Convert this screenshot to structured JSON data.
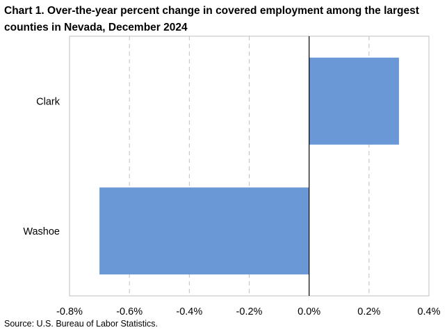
{
  "title": "Chart 1. Over-the-year percent change in covered employment among the largest counties in Nevada, December 2024",
  "source": "Source: U.S. Bureau of Labor Statistics.",
  "colors": {
    "bar": "#6A98D6",
    "grid": "#BFBFBF",
    "axis": "#000000",
    "frame": "#BFBFBF"
  },
  "chart_data": {
    "type": "bar",
    "orientation": "horizontal",
    "title": "Chart 1. Over-the-year percent change in covered employment among the largest counties in Nevada, December 2024",
    "categories": [
      "Clark",
      "Washoe"
    ],
    "values": [
      0.3,
      -0.7
    ],
    "unit": "percent",
    "xlim": [
      -0.8,
      0.4
    ],
    "xticks": [
      -0.8,
      -0.6,
      -0.4,
      -0.2,
      0.0,
      0.2,
      0.4
    ],
    "xtick_labels": [
      "-0.8%",
      "-0.6%",
      "-0.4%",
      "-0.2%",
      "0.0%",
      "0.2%",
      "0.4%"
    ],
    "xlabel": "",
    "ylabel": "",
    "grid": "vertical dashed",
    "legend": "none"
  }
}
